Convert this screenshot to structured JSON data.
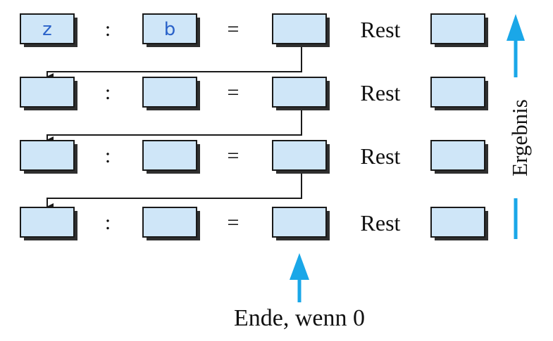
{
  "colors": {
    "box_fill": "#cfe6f8",
    "box_stroke": "#1a1a1a",
    "box_shadow": "#2f2f2f",
    "arrow_accent": "#1aa7e8",
    "line": "#1a1a1a"
  },
  "operators": {
    "divide": ":",
    "equals": "="
  },
  "rest_label": "Rest",
  "rows": [
    {
      "dividend": "z",
      "divisor": "b",
      "quotient": "",
      "remainder": ""
    },
    {
      "dividend": "",
      "divisor": "",
      "quotient": "",
      "remainder": ""
    },
    {
      "dividend": "",
      "divisor": "",
      "quotient": "",
      "remainder": ""
    },
    {
      "dividend": "",
      "divisor": "",
      "quotient": "",
      "remainder": ""
    }
  ],
  "result_label": "Ergebnis",
  "end_label": "Ende, wenn 0",
  "icons": {
    "result_arrow": "arrow-up-icon",
    "end_arrow": "arrow-up-icon"
  }
}
